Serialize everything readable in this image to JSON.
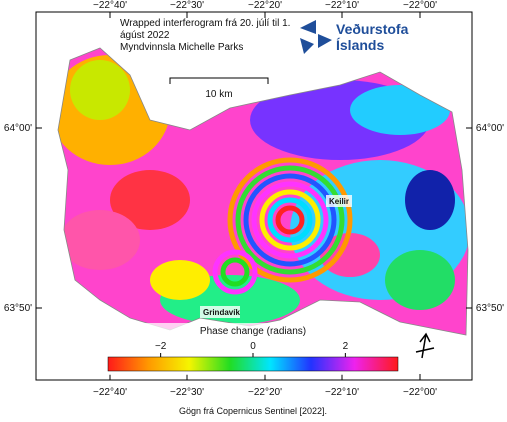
{
  "map": {
    "title": "Wrapped interferogram frá 20. júlí til 1. ágúst 2022",
    "credit": "Myndvinnsla Michelle Parks",
    "logo": {
      "line1": "Veðurstofa",
      "line2": "Íslands"
    },
    "scale_bar": "10 km",
    "places": [
      "Keilir",
      "Grindavík"
    ],
    "lon_labels": [
      "−22°40'",
      "−22°30'",
      "−22°20'",
      "−22°10'",
      "−22°00'"
    ],
    "lat_labels": [
      "64°00'",
      "63°50'"
    ],
    "colorbar": {
      "title": "Phase change (radians)",
      "lim": [
        -3.14,
        3.14
      ],
      "ticks": [
        {
          "value": -2,
          "label": "−2"
        },
        0,
        2
      ]
    },
    "source": "Gögn frá Copernicus Sentinel [2022]."
  }
}
